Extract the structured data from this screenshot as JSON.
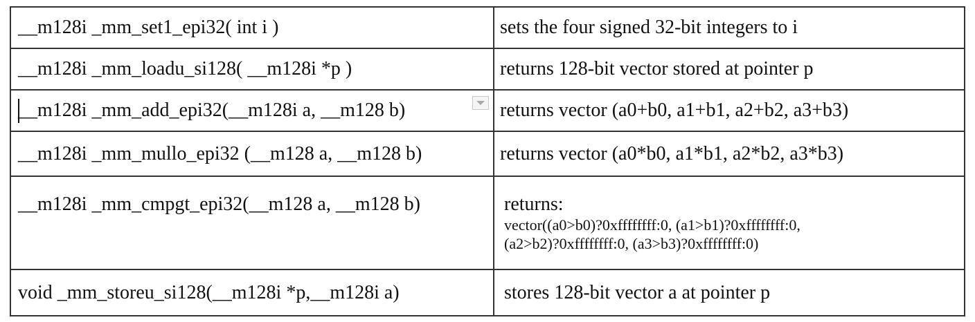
{
  "rows": [
    {
      "signature": "__m128i _mm_set1_epi32( int i )",
      "description": "sets the four signed 32-bit integers to i"
    },
    {
      "signature": "__m128i _mm_loadu_si128( __m128i *p )",
      "description": "returns 128-bit vector stored at pointer p"
    },
    {
      "signature": "__m128i _mm_add_epi32(__m128i a, __m128 b)",
      "description": "returns vector (a0+b0, a1+b1, a2+b2, a3+b3)"
    },
    {
      "signature": "__m128i _mm_mullo_epi32 (__m128 a, __m128 b)",
      "description": "returns vector (a0*b0, a1*b1, a2*b2, a3*b3)"
    },
    {
      "signature": "__m128i _mm_cmpgt_epi32(__m128 a, __m128 b)",
      "description": "returns:",
      "detail_line1": "vector((a0>b0)?0xffffffff:0, (a1>b1)?0xffffffff:0,",
      "detail_line2": "(a2>b2)?0xffffffff:0, (a3>b3)?0xffffffff:0)"
    },
    {
      "signature": "void _mm_storeu_si128(__m128i *p,__m128i a)",
      "description": "stores 128-bit vector a at pointer p"
    }
  ],
  "icons": {
    "dropdown": "chevron-down-icon"
  }
}
